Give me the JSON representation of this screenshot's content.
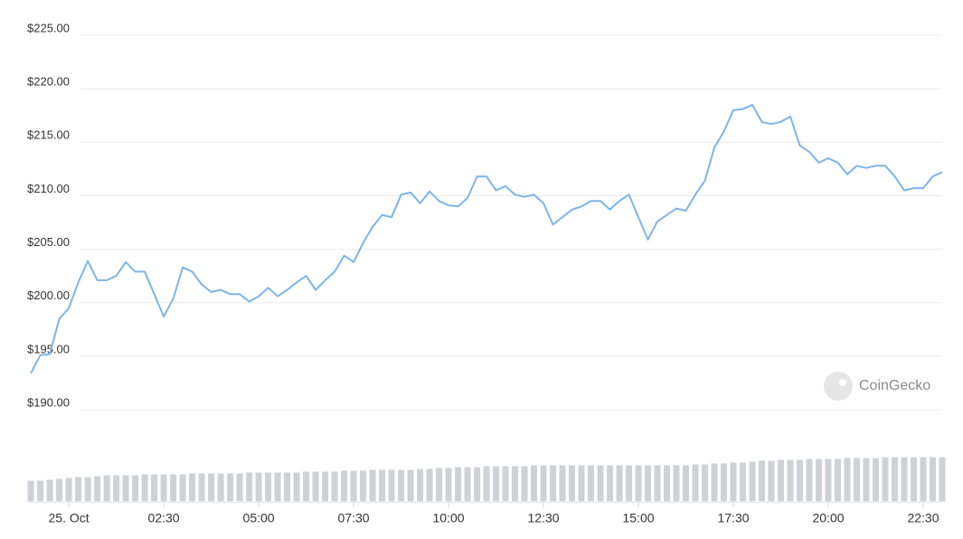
{
  "chart_data": {
    "type": "line",
    "color": "#7cb5ec",
    "grid": true,
    "watermark": "CoinGecko",
    "x": [
      -1,
      -0.75,
      -0.5,
      -0.25,
      0,
      0.25,
      0.5,
      0.75,
      1,
      1.25,
      1.5,
      1.75,
      2,
      2.25,
      2.5,
      2.75,
      3,
      3.25,
      3.5,
      3.75,
      4,
      4.25,
      4.5,
      4.75,
      5,
      5.25,
      5.5,
      5.75,
      6,
      6.25,
      6.5,
      6.75,
      7,
      7.25,
      7.5,
      7.75,
      8,
      8.25,
      8.5,
      8.75,
      9,
      9.25,
      9.5,
      9.75,
      10,
      10.25,
      10.5,
      10.75,
      11,
      11.25,
      11.5,
      11.75,
      12,
      12.25,
      12.5,
      12.75,
      13,
      13.25,
      13.5,
      13.75,
      14,
      14.25,
      14.5,
      14.75,
      15,
      15.25,
      15.5,
      15.75,
      16,
      16.25,
      16.5,
      16.75,
      17,
      17.25,
      17.5,
      17.75,
      18,
      18.25,
      18.5,
      18.75,
      19,
      19.25,
      19.5,
      19.75,
      20,
      20.25,
      20.5,
      20.75,
      21,
      21.25,
      21.5,
      21.75,
      22,
      22.25,
      22.5,
      22.75,
      23
    ],
    "values": [
      193.4,
      195.1,
      195.2,
      198.5,
      199.5,
      201.9,
      203.9,
      202.1,
      202.1,
      202.5,
      203.8,
      202.9,
      202.9,
      200.8,
      198.7,
      200.4,
      203.3,
      202.9,
      201.7,
      201.0,
      201.2,
      200.8,
      200.8,
      200.1,
      200.6,
      201.4,
      200.6,
      201.2,
      201.9,
      202.5,
      201.2,
      202.1,
      202.9,
      204.4,
      203.8,
      205.6,
      207.1,
      208.2,
      208.0,
      210.1,
      210.3,
      209.3,
      210.4,
      209.5,
      209.1,
      209.0,
      209.8,
      211.8,
      211.8,
      210.5,
      210.9,
      210.1,
      209.9,
      210.1,
      209.3,
      207.3,
      208.0,
      208.7,
      209.0,
      209.5,
      209.5,
      208.7,
      209.5,
      210.1,
      208.0,
      205.9,
      207.6,
      208.2,
      208.8,
      208.6,
      210.1,
      211.4,
      214.5,
      216.0,
      218.0,
      218.1,
      218.5,
      216.9,
      216.7,
      216.9,
      217.4,
      214.7,
      214.1,
      213.1,
      213.5,
      213.1,
      212.0,
      212.8,
      212.6,
      212.8,
      212.8,
      211.8,
      210.5,
      210.7,
      210.7,
      211.8,
      212.2
    ],
    "xlim": [
      -1.05,
      23
    ],
    "xticks": [
      {
        "value": 0,
        "label": "25. Oct"
      },
      {
        "value": 2.5,
        "label": "02:30"
      },
      {
        "value": 5,
        "label": "05:00"
      },
      {
        "value": 7.5,
        "label": "07:30"
      },
      {
        "value": 10,
        "label": "10:00"
      },
      {
        "value": 12.5,
        "label": "12:30"
      },
      {
        "value": 15,
        "label": "15:00"
      },
      {
        "value": 17.5,
        "label": "17:30"
      },
      {
        "value": 20,
        "label": "20:00"
      },
      {
        "value": 22.5,
        "label": "22:30"
      }
    ],
    "ylim": [
      190,
      225
    ],
    "yticks": [
      {
        "value": 225,
        "label": "$225.00"
      },
      {
        "value": 220,
        "label": "$220.00"
      },
      {
        "value": 215,
        "label": "$215.00"
      },
      {
        "value": 210,
        "label": "$210.00"
      },
      {
        "value": 205,
        "label": "$205.00"
      },
      {
        "value": 200,
        "label": "$200.00"
      },
      {
        "value": 195,
        "label": "$195.00"
      },
      {
        "value": 190,
        "label": "$190.00"
      }
    ],
    "volume": {
      "type": "bar",
      "color": "#cfd1d6",
      "ylim": [
        0,
        50
      ],
      "values": [
        24,
        24,
        25,
        26,
        27,
        28,
        28,
        29,
        30,
        30,
        30,
        30,
        31,
        31,
        31,
        31,
        31,
        32,
        32,
        32,
        32,
        32,
        32,
        33,
        33,
        33,
        33,
        33,
        33,
        34,
        34,
        34,
        34,
        35,
        35,
        35,
        36,
        36,
        36,
        36,
        36,
        37,
        37,
        38,
        38,
        39,
        39,
        39,
        40,
        40,
        40,
        40,
        40,
        41,
        41,
        41,
        41,
        41,
        41,
        41,
        41,
        41,
        41,
        41,
        41,
        41,
        41,
        41,
        41,
        41,
        42,
        42,
        43,
        43,
        44,
        44,
        45,
        46,
        46,
        47,
        47,
        47,
        48,
        48,
        48,
        48,
        49,
        49,
        49,
        49,
        50,
        50,
        50,
        50,
        50,
        50,
        50
      ]
    }
  }
}
